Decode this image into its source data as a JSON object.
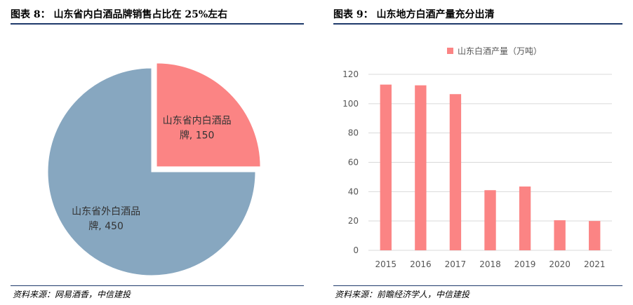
{
  "left": {
    "title": "图表 8：  山东省内白酒品牌销售占比在 25%左右",
    "source": "资料来源：网易酒香，中信建投",
    "chart_data": {
      "type": "pie",
      "slices": [
        {
          "label_line1": "山东省内白酒品",
          "label_line2": "牌, 150",
          "value": 150,
          "color": "#fb8484",
          "exploded": true
        },
        {
          "label_line1": "山东省外白酒品",
          "label_line2": "牌, 450",
          "value": 450,
          "color": "#87a7c0",
          "exploded": false
        }
      ]
    }
  },
  "right": {
    "title": "图表 9：  山东地方白酒产量充分出清",
    "source": "资料来源：前瞻经济学人，中信建投",
    "chart_data": {
      "type": "bar",
      "legend": "山东白酒产量（万吨）",
      "legend_position": "top",
      "categories": [
        "2015",
        "2016",
        "2017",
        "2018",
        "2019",
        "2020",
        "2021"
      ],
      "values": [
        113,
        112.5,
        106.5,
        41,
        43.5,
        20.5,
        20
      ],
      "ylim": [
        0,
        120
      ],
      "yticks": [
        0,
        20,
        40,
        60,
        80,
        100,
        120
      ],
      "grid": true,
      "color": "#fb8484"
    }
  }
}
